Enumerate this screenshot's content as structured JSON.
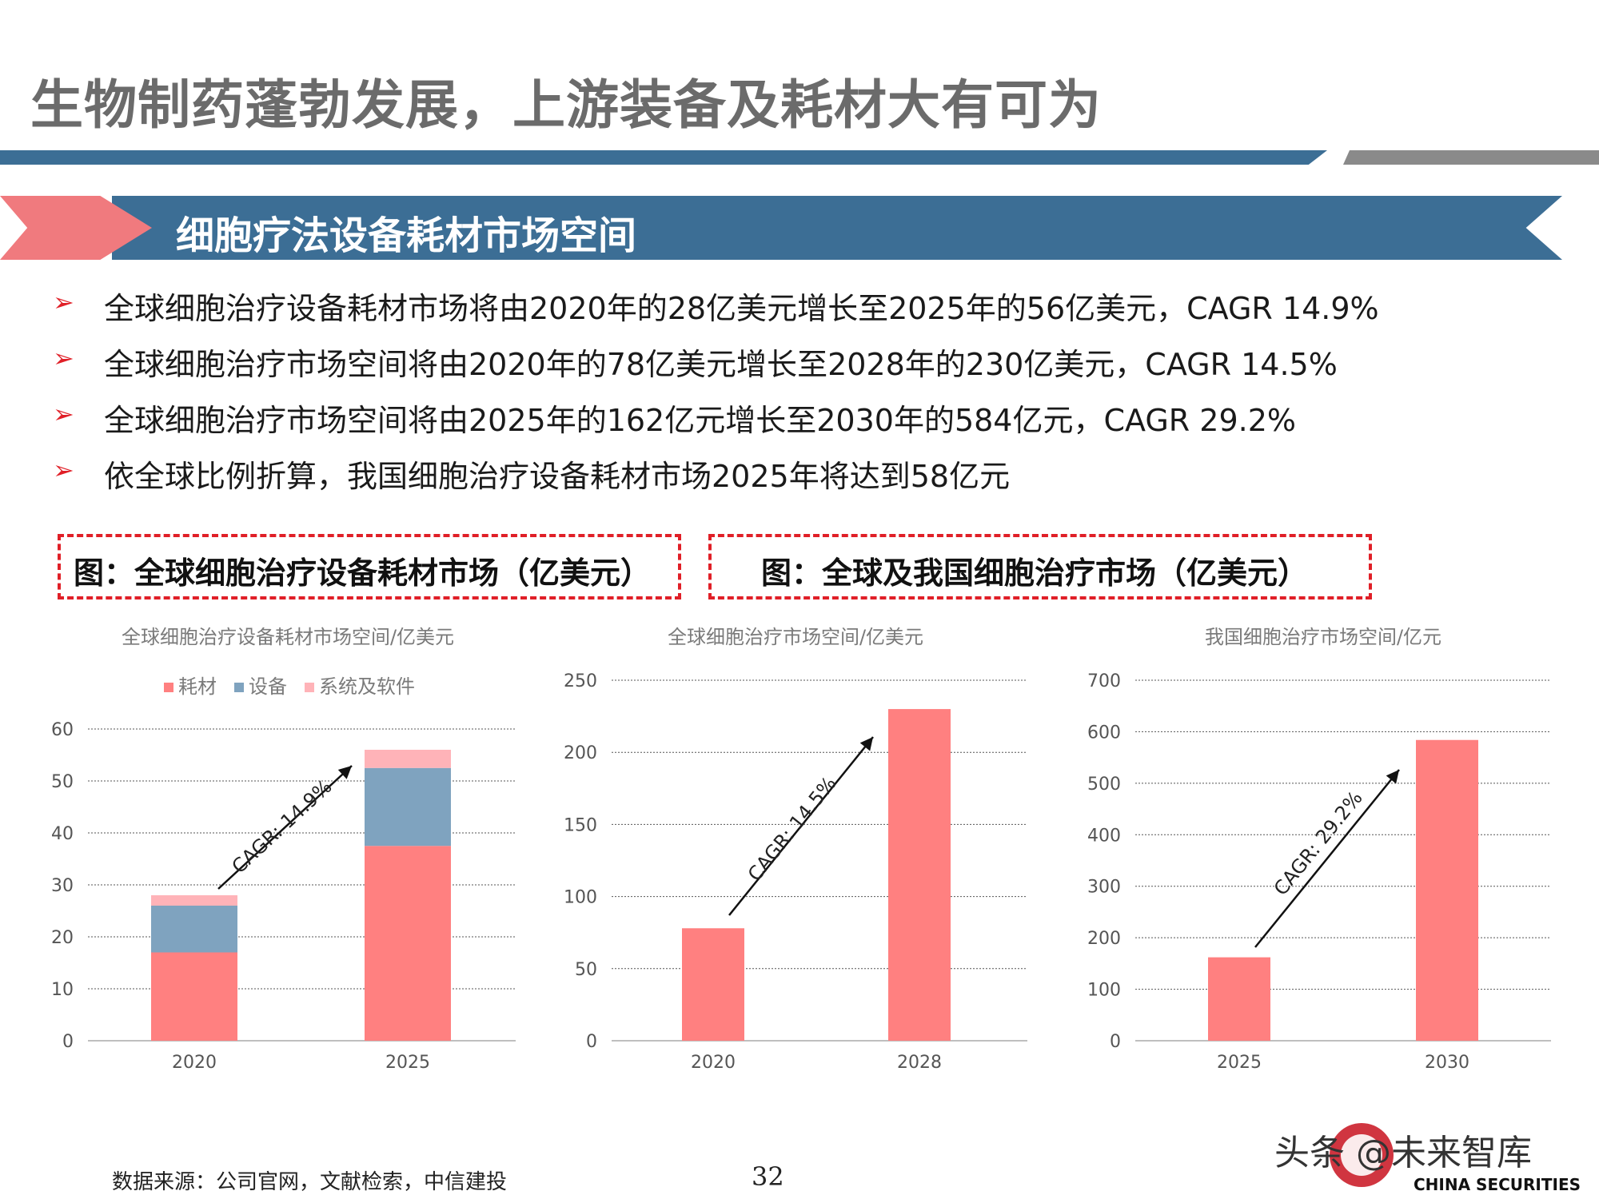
{
  "header": {
    "title": "生物制药蓬勃发展，上游装备及耗材大有可为"
  },
  "section": {
    "title": "细胞疗法设备耗材市场空间"
  },
  "bullets": [
    "全球细胞治疗设备耗材市场将由2020年的28亿美元增长至2025年的56亿美元，CAGR 14.9%",
    "全球细胞治疗市场空间将由2020年的78亿美元增长至2028年的230亿美元，CAGR 14.5%",
    "全球细胞治疗市场空间将由2025年的162亿元增长至2030年的584亿元，CAGR 29.2%",
    "依全球比例折算，我国细胞治疗设备耗材市场2025年将达到58亿元"
  ],
  "figure_labels": {
    "left": "图：全球细胞治疗设备耗材市场（亿美元）",
    "right": "图：全球及我国细胞治疗市场（亿美元）"
  },
  "colors": {
    "primary": "#3c6e95",
    "accent": "#f07a7e",
    "bar": "#ff8080",
    "equipment": "#7fa3bf",
    "software": "#ffb3b8",
    "grid": "#555555"
  },
  "chart_data": [
    {
      "type": "bar",
      "stacked": true,
      "title": "全球细胞治疗设备耗材市场空间/亿美元",
      "categories": [
        "2020",
        "2025"
      ],
      "series": [
        {
          "name": "耗材",
          "values": [
            17,
            37.5
          ]
        },
        {
          "name": "设备",
          "values": [
            9,
            15
          ]
        },
        {
          "name": "系统及软件",
          "values": [
            2,
            3.5
          ]
        }
      ],
      "ylim": [
        0,
        60
      ],
      "yticks": [
        "0",
        "10",
        "20",
        "30",
        "40",
        "50",
        "60"
      ],
      "legend": "top",
      "annotation": "CAGR: 14.9%"
    },
    {
      "type": "bar",
      "title": "全球细胞治疗市场空间/亿美元",
      "categories": [
        "2020",
        "2028"
      ],
      "values": [
        78,
        230
      ],
      "ylim": [
        0,
        250
      ],
      "yticks": [
        "0",
        "50",
        "100",
        "150",
        "200",
        "250"
      ],
      "annotation": "CAGR: 14.5%"
    },
    {
      "type": "bar",
      "title": "我国细胞治疗市场空间/亿元",
      "categories": [
        "2025",
        "2030"
      ],
      "values": [
        162,
        584
      ],
      "ylim": [
        0,
        700
      ],
      "yticks": [
        "0",
        "100",
        "200",
        "300",
        "400",
        "500",
        "600",
        "700"
      ],
      "annotation": "CAGR: 29.2%"
    }
  ],
  "footer": {
    "source": "数据来源：公司官网，文献检索，中信建投",
    "page_number": "32",
    "watermark_logo": "头条 @未来智库",
    "watermark_sub": "CHINA SECURITIES"
  }
}
